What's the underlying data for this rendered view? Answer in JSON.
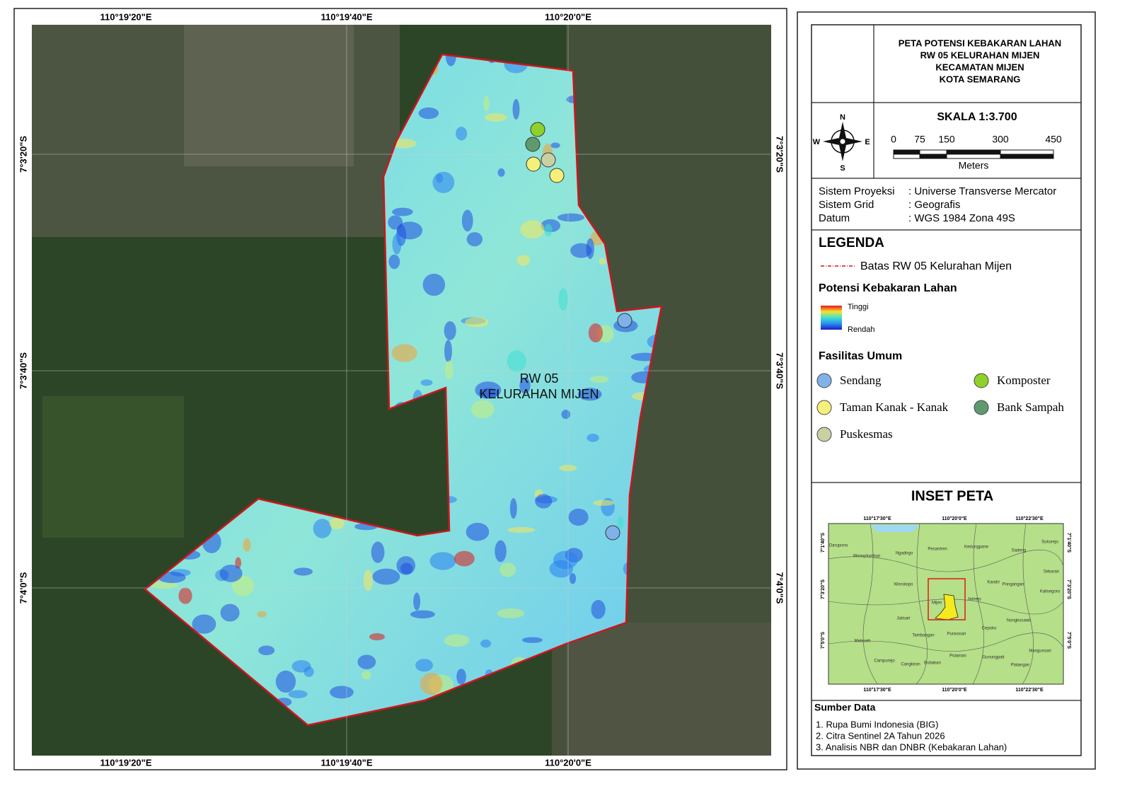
{
  "map": {
    "x_labels": [
      "110°19'20\"E",
      "110°19'40\"E",
      "110°20'0\"E"
    ],
    "y_labels": [
      "7°3'20\"S",
      "7°3'40\"S",
      "7°4'0\"S"
    ],
    "area_label": [
      "RW 05",
      "KELURAHAN MIJEN"
    ]
  },
  "title": [
    "PETA POTENSI KEBAKARAN LAHAN",
    "RW 05 KELURAHAN MIJEN",
    "KECAMATAN MIJEN",
    "KOTA SEMARANG"
  ],
  "compass": {
    "n": "N",
    "s": "S",
    "e": "E",
    "w": "W"
  },
  "scale": {
    "title": "SKALA 1:3.700",
    "ticks": [
      "0",
      "75",
      "150",
      "300",
      "450"
    ],
    "unit": "Meters"
  },
  "projection": [
    [
      "Sistem Proyeksi",
      ": Universe Transverse Mercator"
    ],
    [
      "Sistem Grid",
      ": Geografis"
    ],
    [
      "Datum",
      ": WGS 1984 Zona 49S"
    ]
  ],
  "legend": {
    "title": "LEGENDA",
    "boundary": "Batas RW 05 Kelurahan Mijen",
    "potensi_title": "Potensi Kebakaran Lahan",
    "high": "Tinggi",
    "low": "Rendah",
    "facilities_title": "Fasilitas Umum",
    "facilities": [
      {
        "name": "Sendang",
        "color": "#7fb2e8"
      },
      {
        "name": "Komposter",
        "color": "#8fd12b"
      },
      {
        "name": "Taman Kanak - Kanak",
        "color": "#f5f07a"
      },
      {
        "name": "Bank Sampah",
        "color": "#5f9a6e"
      },
      {
        "name": "Puskesmas",
        "color": "#c9d1a4"
      }
    ]
  },
  "inset": {
    "title": "INSET PETA",
    "x_labels": [
      "110°17'30\"E",
      "110°20'0\"E",
      "110°22'30\"E"
    ],
    "y_labels": [
      "7°1'40\"S",
      "7°3'20\"S",
      "7°5'0\"S"
    ],
    "places": [
      "Darupono",
      "Wonoplumbon",
      "Ngadirgo",
      "Pesantren",
      "Kedungpane",
      "Sadeng",
      "Sukorejo",
      "Sekaran",
      "Kalisegoro",
      "Wonolopo",
      "Kandri",
      "Pongangan",
      "Mijen",
      "Jatirejo",
      "Jatisari",
      "Purwosari",
      "Cepoko",
      "Nongkosawit",
      "Tambangan",
      "Meteseh",
      "Gunungpati",
      "Plalangan",
      "Campurejo",
      "Cangkiran",
      "Bubakan",
      "Polaman",
      "Mangunsari"
    ]
  },
  "sources": {
    "title": "Sumber Data",
    "items": [
      "1. Rupa Bumi Indonesia (BIG)",
      "2. Citra Sentinel 2A Tahun 2026",
      "3. Analisis NBR dan DNBR (Kebakaran Lahan)"
    ]
  }
}
